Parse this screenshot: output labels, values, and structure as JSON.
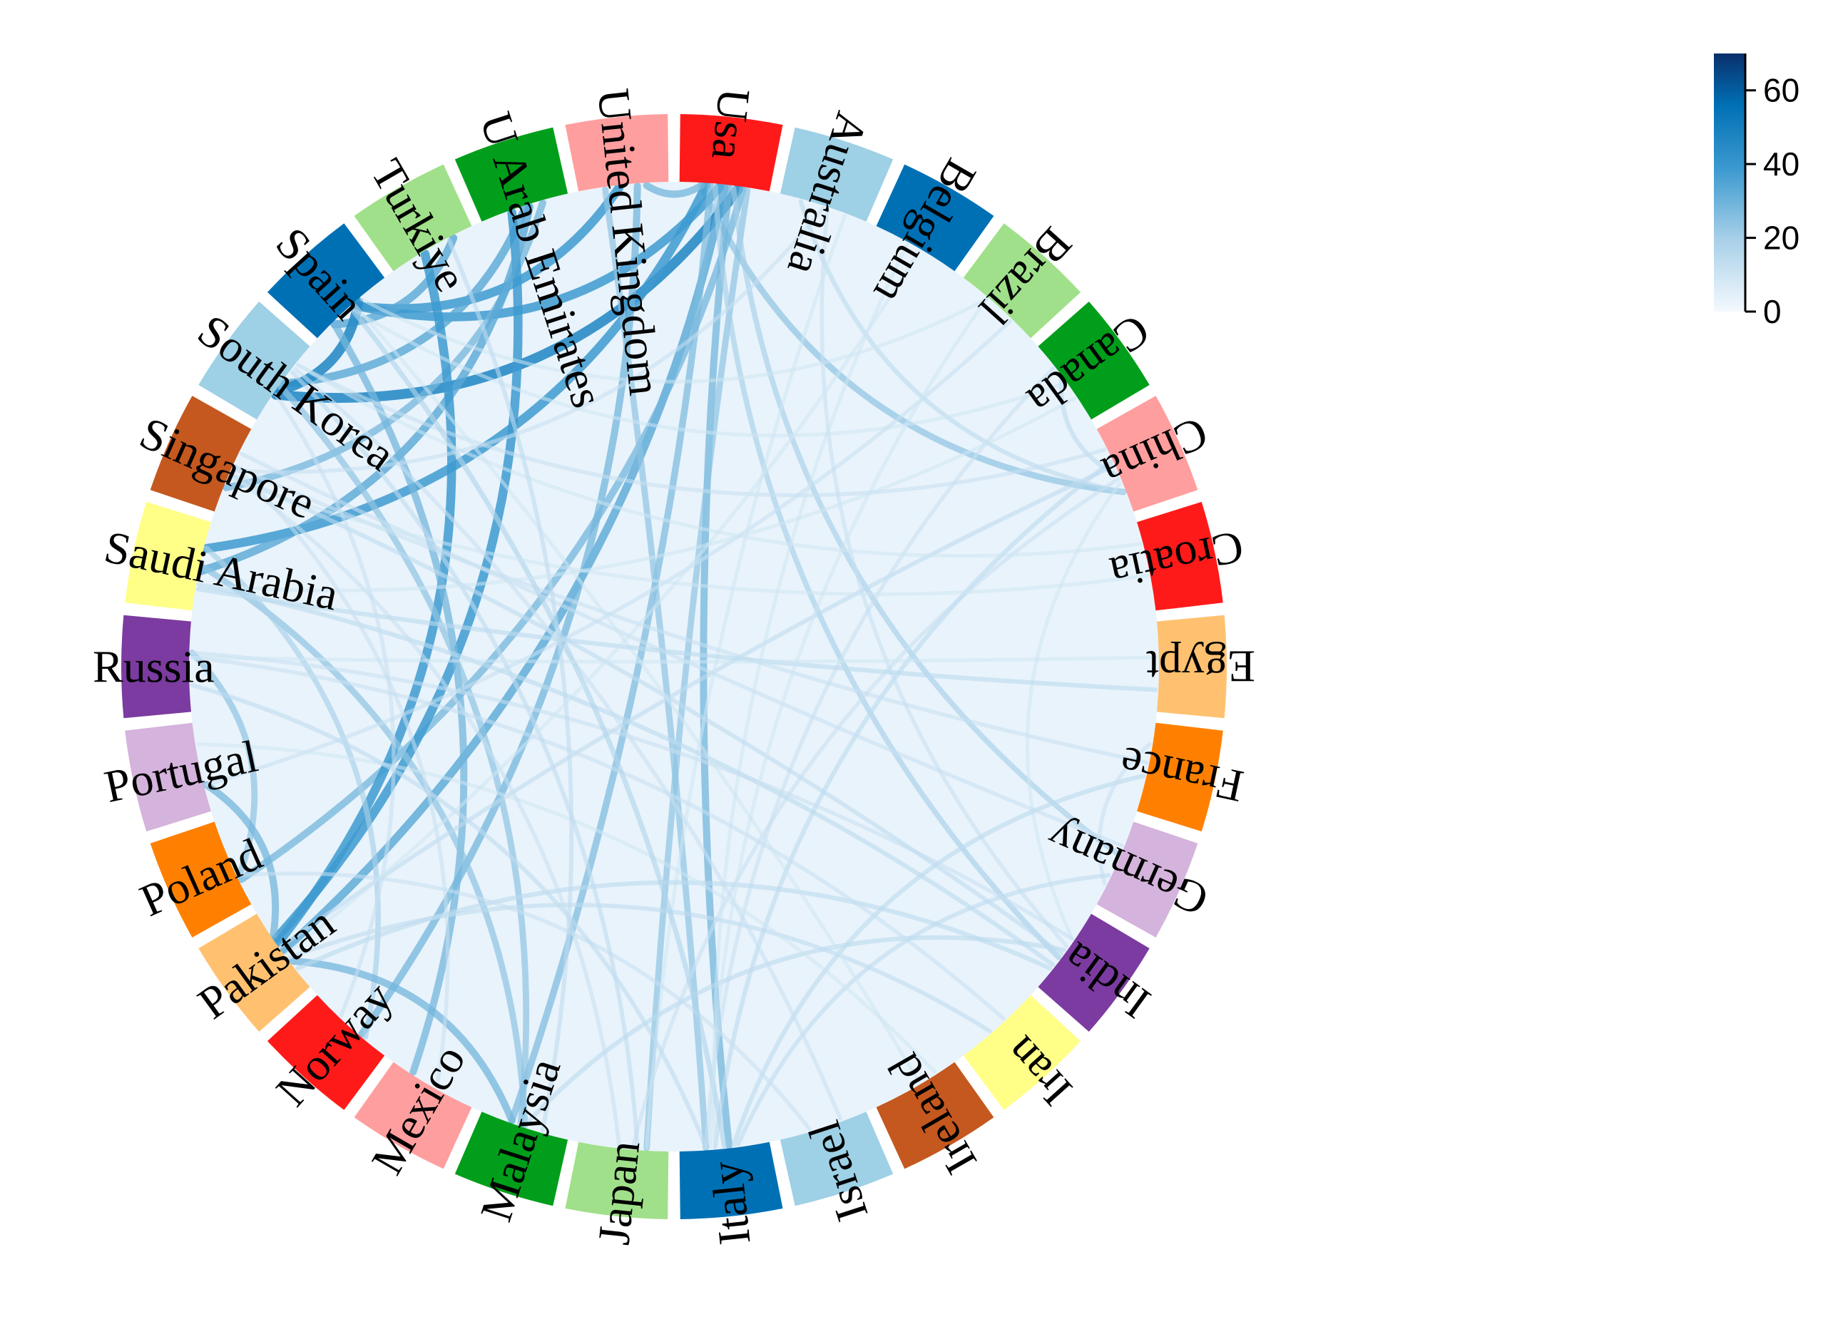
{
  "chart_data": {
    "type": "chord",
    "segments": [
      {
        "name": "Usa",
        "color": "#ff1a1a"
      },
      {
        "name": "Australia",
        "color": "#9ed0e6"
      },
      {
        "name": "Belgium",
        "color": "#0070b5"
      },
      {
        "name": "Brazil",
        "color": "#a0e08a"
      },
      {
        "name": "Canada",
        "color": "#009e1a"
      },
      {
        "name": "China",
        "color": "#ff9e9e"
      },
      {
        "name": "Croatia",
        "color": "#ff1a1a"
      },
      {
        "name": "Egypt",
        "color": "#ffc170"
      },
      {
        "name": "France",
        "color": "#ff8000"
      },
      {
        "name": "Germany",
        "color": "#d4b3dc"
      },
      {
        "name": "India",
        "color": "#7b3ba0"
      },
      {
        "name": "Iran",
        "color": "#ffff88"
      },
      {
        "name": "Ireland",
        "color": "#c4581f"
      },
      {
        "name": "Israel",
        "color": "#9ed0e6"
      },
      {
        "name": "Italy",
        "color": "#0070b5"
      },
      {
        "name": "Japan",
        "color": "#a0e08a"
      },
      {
        "name": "Malaysia",
        "color": "#009e1a"
      },
      {
        "name": "Mexico",
        "color": "#ff9e9e"
      },
      {
        "name": "Norway",
        "color": "#ff1a1a"
      },
      {
        "name": "Pakistan",
        "color": "#ffc170"
      },
      {
        "name": "Poland",
        "color": "#ff8000"
      },
      {
        "name": "Portugal",
        "color": "#d4b3dc"
      },
      {
        "name": "Russia",
        "color": "#7b3ba0"
      },
      {
        "name": "Saudi Arabia",
        "color": "#ffff88"
      },
      {
        "name": "Singapore",
        "color": "#c4581f"
      },
      {
        "name": "South Korea",
        "color": "#9ed0e6"
      },
      {
        "name": "Spain",
        "color": "#0070b5"
      },
      {
        "name": "Turkiye",
        "color": "#a0e08a"
      },
      {
        "name": "U Arab Emirates",
        "color": "#009e1a"
      },
      {
        "name": "United Kingdom",
        "color": "#ff9e9e"
      }
    ],
    "links": [
      {
        "source": "Usa",
        "target": "China",
        "value": 25
      },
      {
        "source": "Usa",
        "target": "Spain",
        "value": 40
      },
      {
        "source": "Usa",
        "target": "South Korea",
        "value": 45
      },
      {
        "source": "Usa",
        "target": "Saudi Arabia",
        "value": 40
      },
      {
        "source": "Usa",
        "target": "Pakistan",
        "value": 35
      },
      {
        "source": "Usa",
        "target": "Poland",
        "value": 30
      },
      {
        "source": "Usa",
        "target": "Malaysia",
        "value": 28
      },
      {
        "source": "Usa",
        "target": "Italy",
        "value": 30
      },
      {
        "source": "Usa",
        "target": "Japan",
        "value": 25
      },
      {
        "source": "Usa",
        "target": "India",
        "value": 20
      },
      {
        "source": "Usa",
        "target": "Germany",
        "value": 20
      },
      {
        "source": "Usa",
        "target": "United Kingdom",
        "value": 30
      },
      {
        "source": "United Kingdom",
        "target": "Spain",
        "value": 40
      },
      {
        "source": "United Kingdom",
        "target": "Norway",
        "value": 30
      },
      {
        "source": "United Kingdom",
        "target": "Italy",
        "value": 25
      },
      {
        "source": "U Arab Emirates",
        "target": "South Korea",
        "value": 35
      },
      {
        "source": "U Arab Emirates",
        "target": "Singapore",
        "value": 30
      },
      {
        "source": "U Arab Emirates",
        "target": "Pakistan",
        "value": 40
      },
      {
        "source": "U Arab Emirates",
        "target": "Saudi Arabia",
        "value": 35
      },
      {
        "source": "Turkiye",
        "target": "Spain",
        "value": 35
      },
      {
        "source": "Turkiye",
        "target": "Pakistan",
        "value": 40
      },
      {
        "source": "Spain",
        "target": "South Korea",
        "value": 45
      },
      {
        "source": "Spain",
        "target": "Mexico",
        "value": 30
      },
      {
        "source": "South Korea",
        "target": "Malaysia",
        "value": 25
      },
      {
        "source": "Russia",
        "target": "Poland",
        "value": 25
      },
      {
        "source": "Portugal",
        "target": "Pakistan",
        "value": 30
      },
      {
        "source": "Saudi Arabia",
        "target": "Malaysia",
        "value": 25
      },
      {
        "source": "Saudi Arabia",
        "target": "Norway",
        "value": 20
      },
      {
        "source": "Pakistan",
        "target": "Malaysia",
        "value": 30
      },
      {
        "source": "China",
        "target": "Canada",
        "value": 15
      },
      {
        "source": "China",
        "target": "Australia",
        "value": 15
      },
      {
        "source": "China",
        "target": "Italy",
        "value": 15
      },
      {
        "source": "China",
        "target": "Japan",
        "value": 12
      },
      {
        "source": "China",
        "target": "South Korea",
        "value": 12
      },
      {
        "source": "China",
        "target": "Pakistan",
        "value": 14
      },
      {
        "source": "China",
        "target": "India",
        "value": 10
      },
      {
        "source": "Canada",
        "target": "Italy",
        "value": 12
      },
      {
        "source": "Canada",
        "target": "Spain",
        "value": 10
      },
      {
        "source": "Brazil",
        "target": "Portugal",
        "value": 12
      },
      {
        "source": "Brazil",
        "target": "Spain",
        "value": 10
      },
      {
        "source": "Australia",
        "target": "India",
        "value": 12
      },
      {
        "source": "Australia",
        "target": "Japan",
        "value": 10
      },
      {
        "source": "Belgium",
        "target": "Italy",
        "value": 10
      },
      {
        "source": "France",
        "target": "Italy",
        "value": 15
      },
      {
        "source": "France",
        "target": "Germany",
        "value": 12
      },
      {
        "source": "France",
        "target": "Singapore",
        "value": 12
      },
      {
        "source": "Germany",
        "target": "Italy",
        "value": 14
      },
      {
        "source": "Germany",
        "target": "Singapore",
        "value": 12
      },
      {
        "source": "India",
        "target": "Malaysia",
        "value": 15
      },
      {
        "source": "India",
        "target": "Saudi Arabia",
        "value": 15
      },
      {
        "source": "India",
        "target": "Russia",
        "value": 12
      },
      {
        "source": "India",
        "target": "Singapore",
        "value": 14
      },
      {
        "source": "India",
        "target": "Pakistan",
        "value": 15
      },
      {
        "source": "Iran",
        "target": "Russia",
        "value": 12
      },
      {
        "source": "Iran",
        "target": "Pakistan",
        "value": 14
      },
      {
        "source": "Ireland",
        "target": "Portugal",
        "value": 10
      },
      {
        "source": "Ireland",
        "target": "Spain",
        "value": 10
      },
      {
        "source": "Israel",
        "target": "Poland",
        "value": 12
      },
      {
        "source": "Israel",
        "target": "South Korea",
        "value": 12
      },
      {
        "source": "Italy",
        "target": "Spain",
        "value": 18
      },
      {
        "source": "Italy",
        "target": "Russia",
        "value": 14
      },
      {
        "source": "Japan",
        "target": "South Korea",
        "value": 14
      },
      {
        "source": "Japan",
        "target": "Singapore",
        "value": 12
      },
      {
        "source": "Egypt",
        "target": "Saudi Arabia",
        "value": 15
      },
      {
        "source": "Egypt",
        "target": "Russia",
        "value": 10
      },
      {
        "source": "Croatia",
        "target": "Singapore",
        "value": 10
      },
      {
        "source": "Croatia",
        "target": "South Korea",
        "value": 10
      },
      {
        "source": "Mexico",
        "target": "Singapore",
        "value": 12
      },
      {
        "source": "Norway",
        "target": "South Korea",
        "value": 12
      },
      {
        "source": "Malaysia",
        "target": "Turkiye",
        "value": 14
      },
      {
        "source": "Australia",
        "target": "Singapore",
        "value": 12
      },
      {
        "source": "Canada",
        "target": "Saudi Arabia",
        "value": 10
      },
      {
        "source": "Brazil",
        "target": "Italy",
        "value": 10
      },
      {
        "source": "Belgium",
        "target": "Pakistan",
        "value": 10
      }
    ],
    "colorbar": {
      "min": 0,
      "max": 70,
      "ticks": [
        "0",
        "20",
        "40",
        "60"
      ],
      "colors": [
        "#f4f9fe",
        "#a8d0e8",
        "#3d9ad0",
        "#0070b5",
        "#0a2f6b"
      ]
    }
  }
}
